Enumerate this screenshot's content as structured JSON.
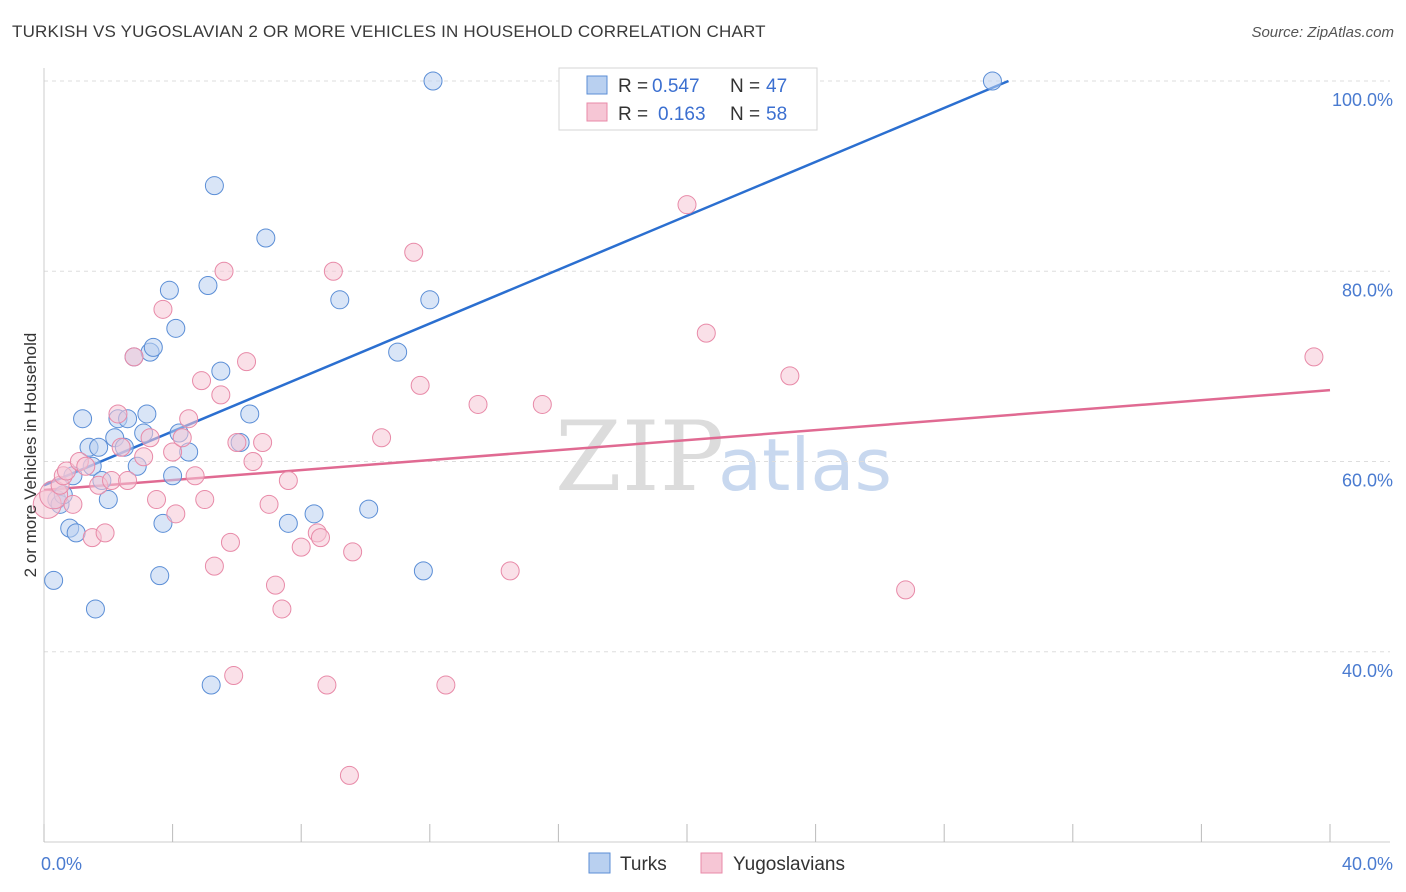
{
  "header": {
    "title": "TURKISH VS YUGOSLAVIAN 2 OR MORE VEHICLES IN HOUSEHOLD CORRELATION CHART",
    "source": "Source: ZipAtlas.com"
  },
  "watermark": {
    "zip": "ZIP",
    "atlas": "atlas"
  },
  "chart_data": {
    "type": "scatter",
    "title": "TURKISH VS YUGOSLAVIAN 2 OR MORE VEHICLES IN HOUSEHOLD CORRELATION CHART",
    "xlabel": "",
    "ylabel": "2 or more Vehicles in Household",
    "xlim": [
      0,
      40
    ],
    "ylim": [
      20,
      102
    ],
    "x_tick_labels": [
      {
        "value": 0,
        "label": "0.0%"
      },
      {
        "value": 40,
        "label": "40.0%"
      }
    ],
    "x_minor_ticks": [
      0,
      4,
      8,
      12,
      16,
      20,
      24,
      28,
      32,
      36,
      40
    ],
    "y_ticks": [
      {
        "value": 100,
        "label": "100.0%"
      },
      {
        "value": 80,
        "label": "80.0%"
      },
      {
        "value": 60,
        "label": "60.0%"
      },
      {
        "value": 40,
        "label": "40.0%"
      }
    ],
    "grid": true,
    "legend": {
      "position": "top-center",
      "entries": [
        {
          "r_label": "R =",
          "r_value": "0.547",
          "n_label": "N =",
          "n_value": "47"
        },
        {
          "r_label": "R =",
          "r_value": "0.163",
          "n_label": "N =",
          "n_value": "58"
        }
      ]
    },
    "series": [
      {
        "name": "Turks",
        "color": "#5b8ed6",
        "fill": "#b9d0f0",
        "trend_color": "#2b6fd0",
        "trend": {
          "x": [
            0,
            30
          ],
          "y": [
            57.5,
            100
          ]
        },
        "points": [
          [
            0.3,
            47.5
          ],
          [
            0.4,
            56.0
          ],
          [
            0.5,
            55.5
          ],
          [
            0.6,
            56.5
          ],
          [
            0.8,
            53.0
          ],
          [
            0.9,
            58.5
          ],
          [
            1.0,
            52.5
          ],
          [
            1.2,
            64.5
          ],
          [
            1.4,
            61.5
          ],
          [
            1.5,
            59.5
          ],
          [
            1.6,
            44.5
          ],
          [
            1.7,
            61.5
          ],
          [
            1.8,
            58.0
          ],
          [
            2.0,
            56.0
          ],
          [
            2.2,
            62.5
          ],
          [
            2.3,
            64.5
          ],
          [
            2.5,
            61.5
          ],
          [
            2.6,
            64.5
          ],
          [
            2.8,
            71.0
          ],
          [
            2.9,
            59.5
          ],
          [
            3.1,
            63.0
          ],
          [
            3.2,
            65.0
          ],
          [
            3.3,
            71.5
          ],
          [
            3.4,
            72.0
          ],
          [
            3.6,
            48.0
          ],
          [
            3.7,
            53.5
          ],
          [
            3.9,
            78.0
          ],
          [
            4.0,
            58.5
          ],
          [
            4.1,
            74.0
          ],
          [
            4.2,
            63.0
          ],
          [
            4.5,
            61.0
          ],
          [
            5.1,
            78.5
          ],
          [
            5.2,
            36.5
          ],
          [
            5.3,
            89.0
          ],
          [
            5.5,
            69.5
          ],
          [
            6.1,
            62.0
          ],
          [
            6.4,
            65.0
          ],
          [
            6.9,
            83.5
          ],
          [
            7.6,
            53.5
          ],
          [
            8.4,
            54.5
          ],
          [
            9.2,
            77.0
          ],
          [
            10.1,
            55.0
          ],
          [
            11.0,
            71.5
          ],
          [
            11.8,
            48.5
          ],
          [
            12.0,
            77.0
          ],
          [
            12.1,
            100
          ],
          [
            29.5,
            100
          ]
        ]
      },
      {
        "name": "Yugoslavians",
        "color": "#e88aa8",
        "fill": "#f6c6d5",
        "trend_color": "#e06a92",
        "trend": {
          "x": [
            0,
            40
          ],
          "y": [
            57.0,
            67.5
          ]
        },
        "points": [
          [
            0.1,
            55.5
          ],
          [
            0.3,
            56.5
          ],
          [
            0.5,
            57.5
          ],
          [
            0.6,
            58.5
          ],
          [
            0.7,
            59.0
          ],
          [
            0.9,
            55.5
          ],
          [
            1.1,
            60.0
          ],
          [
            1.3,
            59.5
          ],
          [
            1.5,
            52.0
          ],
          [
            1.7,
            57.5
          ],
          [
            1.9,
            52.5
          ],
          [
            2.1,
            58.0
          ],
          [
            2.3,
            65.0
          ],
          [
            2.4,
            61.5
          ],
          [
            2.6,
            58.0
          ],
          [
            2.8,
            71.0
          ],
          [
            3.1,
            60.5
          ],
          [
            3.3,
            62.5
          ],
          [
            3.5,
            56.0
          ],
          [
            3.7,
            76.0
          ],
          [
            4.0,
            61.0
          ],
          [
            4.1,
            54.5
          ],
          [
            4.3,
            62.5
          ],
          [
            4.5,
            64.5
          ],
          [
            4.7,
            58.5
          ],
          [
            4.9,
            68.5
          ],
          [
            5.0,
            56.0
          ],
          [
            5.3,
            49.0
          ],
          [
            5.5,
            67.0
          ],
          [
            5.6,
            80.0
          ],
          [
            5.8,
            51.5
          ],
          [
            5.9,
            37.5
          ],
          [
            6.0,
            62.0
          ],
          [
            6.3,
            70.5
          ],
          [
            6.5,
            60.0
          ],
          [
            6.8,
            62.0
          ],
          [
            7.0,
            55.5
          ],
          [
            7.2,
            47.0
          ],
          [
            7.4,
            44.5
          ],
          [
            7.6,
            58.0
          ],
          [
            8.0,
            51.0
          ],
          [
            8.5,
            52.5
          ],
          [
            8.6,
            52.0
          ],
          [
            8.8,
            36.5
          ],
          [
            9.0,
            80.0
          ],
          [
            9.5,
            27.0
          ],
          [
            9.6,
            50.5
          ],
          [
            10.5,
            62.5
          ],
          [
            11.5,
            82.0
          ],
          [
            11.7,
            68.0
          ],
          [
            12.5,
            36.5
          ],
          [
            13.5,
            66.0
          ],
          [
            14.5,
            48.5
          ],
          [
            15.5,
            66.0
          ],
          [
            20.0,
            87.0
          ],
          [
            20.6,
            73.5
          ],
          [
            23.2,
            69.0
          ],
          [
            26.8,
            46.5
          ],
          [
            39.5,
            71.0
          ]
        ]
      }
    ]
  },
  "bottom_legend": [
    {
      "label": "Turks"
    },
    {
      "label": "Yugoslavians"
    }
  ]
}
